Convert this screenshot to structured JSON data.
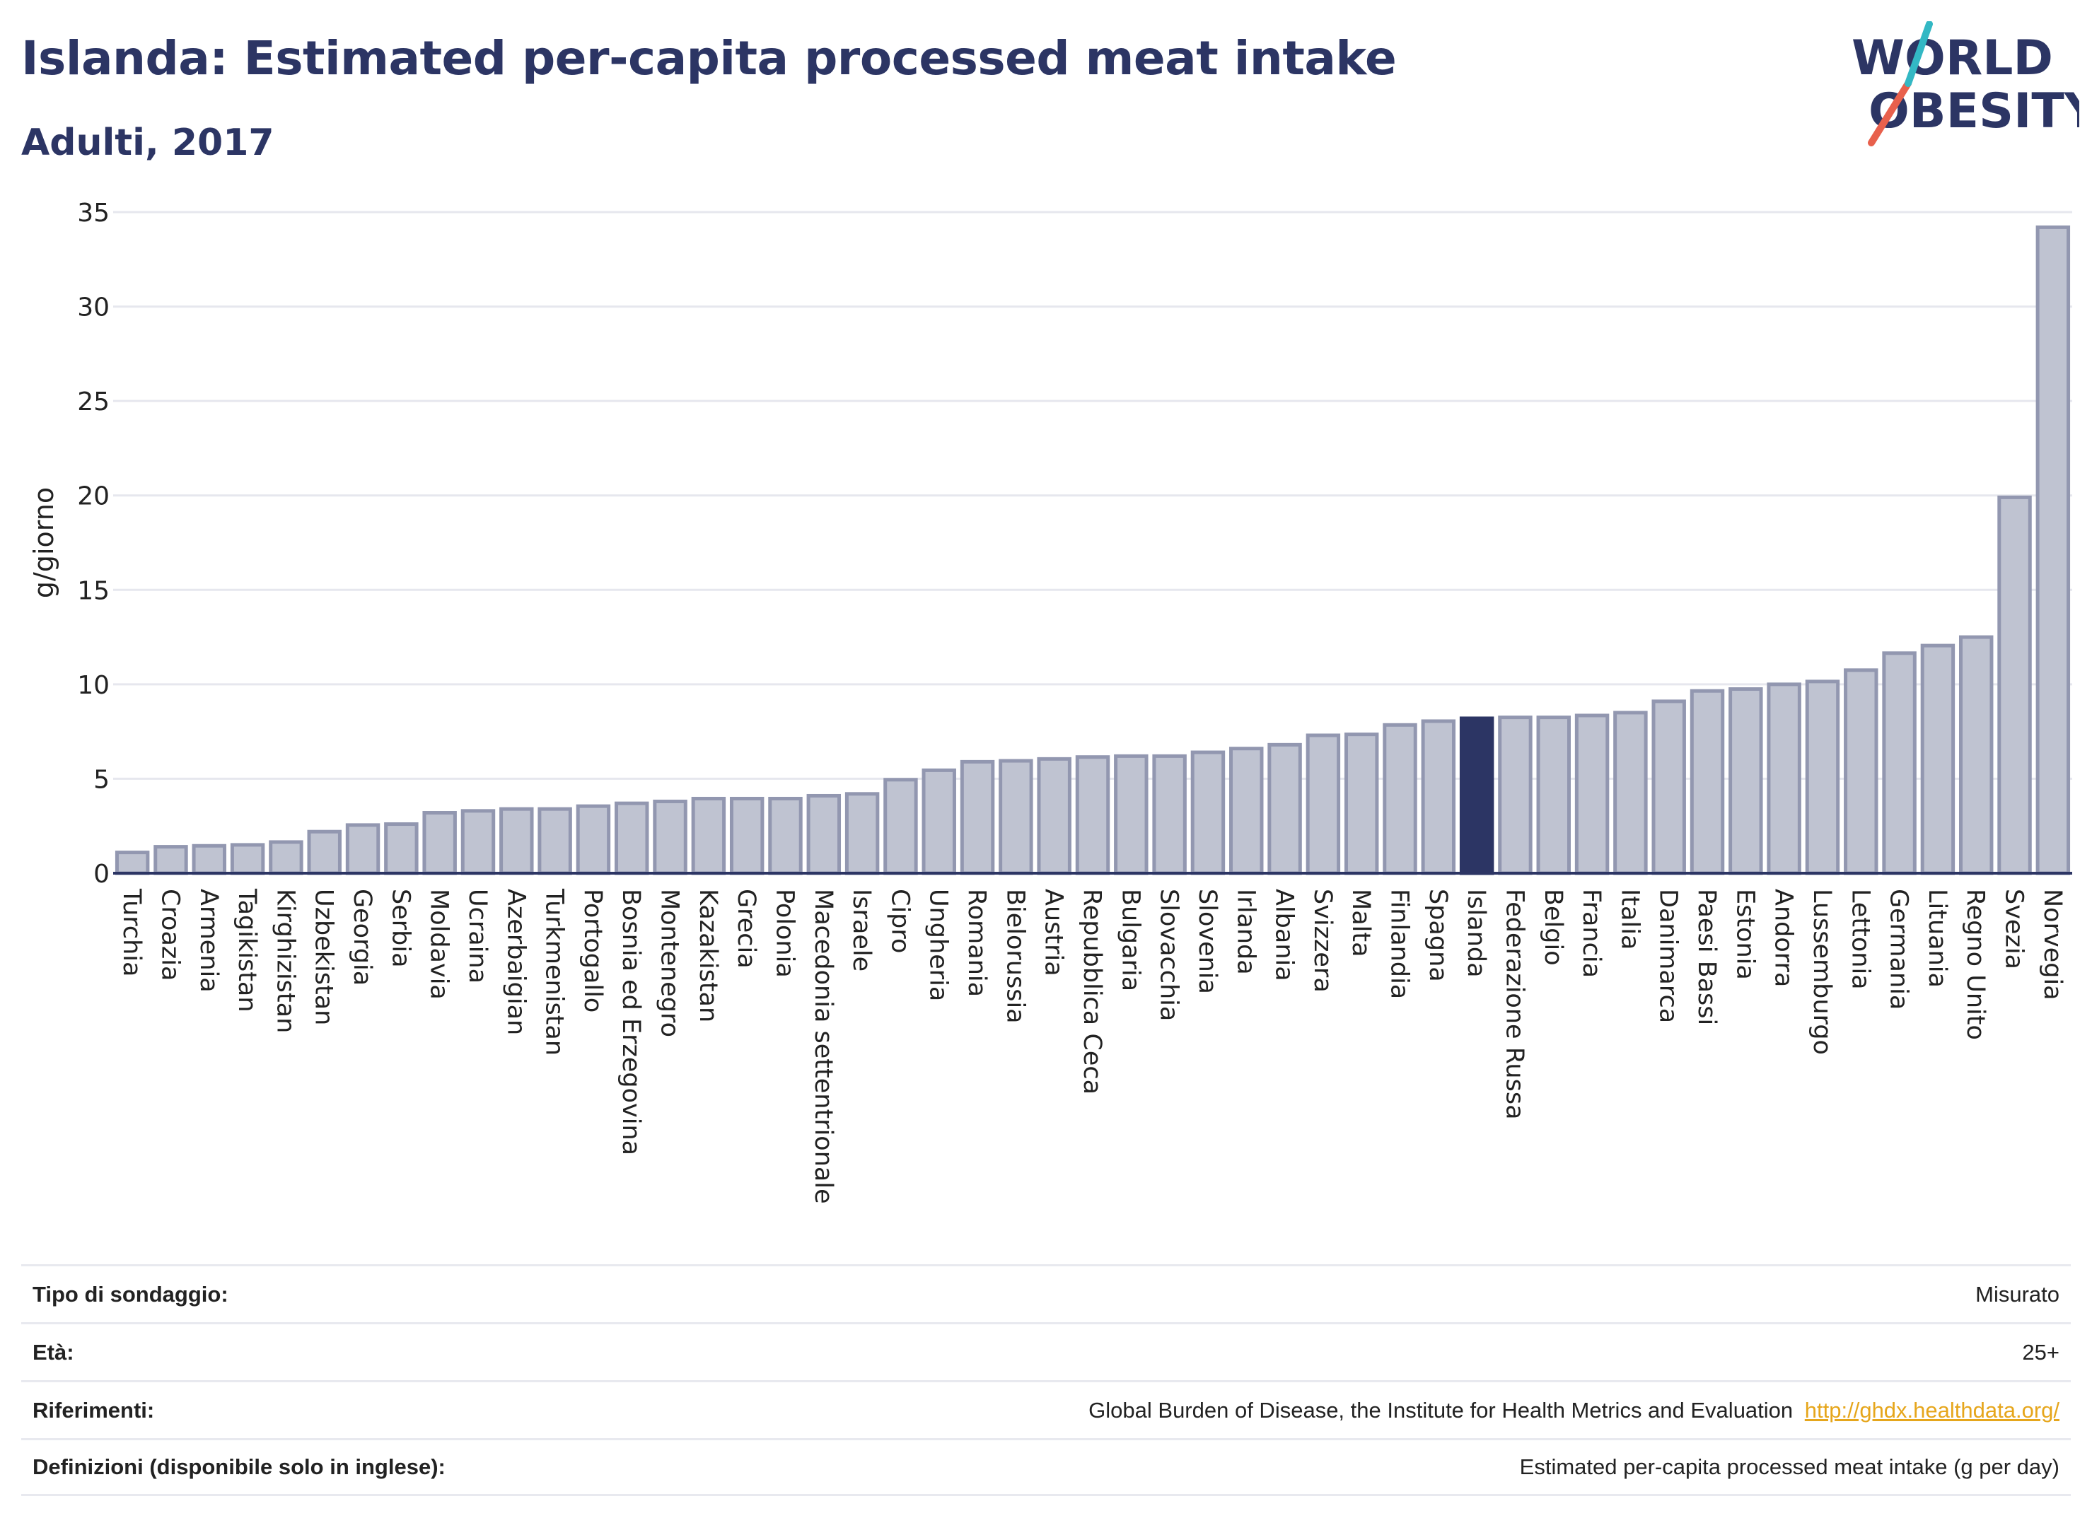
{
  "header": {
    "title": "Islanda: Estimated per-capita processed meat intake",
    "subtitle": "Adulti, 2017"
  },
  "logo": {
    "line1": "WORLD",
    "line2": "OBESITY",
    "colors": {
      "text": "#2c3564",
      "slash_red": "#e8604c",
      "slash_teal": "#33b8c4"
    }
  },
  "chart_data": {
    "type": "bar",
    "ylabel": "g/giorno",
    "xlabel": "",
    "ylim": [
      0,
      35
    ],
    "yticks": [
      0,
      5,
      10,
      15,
      20,
      25,
      30,
      35
    ],
    "grid": true,
    "highlight": "Islanda",
    "colors": {
      "bar": "#bfc3d1",
      "bar_border": "#9297b0",
      "highlight": "#2c3564",
      "grid": "#e6e7ee",
      "axis": "#2c3564"
    },
    "categories": [
      "Turchia",
      "Croazia",
      "Armenia",
      "Tagikistan",
      "Kirghizistan",
      "Uzbekistan",
      "Georgia",
      "Serbia",
      "Moldavia",
      "Ucraina",
      "Azerbaigian",
      "Turkmenistan",
      "Portogallo",
      "Bosnia ed Erzegovina",
      "Montenegro",
      "Kazakistan",
      "Grecia",
      "Polonia",
      "Macedonia settentrionale",
      "Israele",
      "Cipro",
      "Ungheria",
      "Romania",
      "Bielorussia",
      "Austria",
      "Repubblica Ceca",
      "Bulgaria",
      "Slovacchia",
      "Slovenia",
      "Irlanda",
      "Albania",
      "Svizzera",
      "Malta",
      "Finlandia",
      "Spagna",
      "Islanda",
      "Federazione Russa",
      "Belgio",
      "Francia",
      "Italia",
      "Danimarca",
      "Paesi Bassi",
      "Estonia",
      "Andorra",
      "Lussemburgo",
      "Lettonia",
      "Germania",
      "Lituania",
      "Regno Unito",
      "Svezia",
      "Norvegia"
    ],
    "values": [
      1.1,
      1.4,
      1.45,
      1.5,
      1.65,
      2.2,
      2.55,
      2.6,
      3.2,
      3.3,
      3.4,
      3.4,
      3.55,
      3.7,
      3.8,
      3.95,
      3.95,
      3.95,
      4.1,
      4.2,
      4.95,
      5.45,
      5.9,
      5.95,
      6.05,
      6.15,
      6.2,
      6.2,
      6.4,
      6.6,
      6.8,
      7.3,
      7.35,
      7.85,
      8.05,
      8.2,
      8.25,
      8.25,
      8.35,
      8.5,
      9.1,
      9.65,
      9.75,
      10.0,
      10.15,
      10.75,
      11.65,
      12.05,
      12.5,
      19.9,
      34.2
    ]
  },
  "info": {
    "survey_label": "Tipo di sondaggio:",
    "survey_value": "Misurato",
    "age_label": "Età:",
    "age_value": "25+",
    "refs_label": "Riferimenti:",
    "refs_value": "Global Burden of Disease, the Institute for Health Metrics and Evaluation",
    "refs_link": "http://ghdx.healthdata.org/",
    "defs_label": "Definizioni (disponibile solo in inglese):",
    "defs_value": "Estimated per-capita processed meat intake (g per day)"
  }
}
